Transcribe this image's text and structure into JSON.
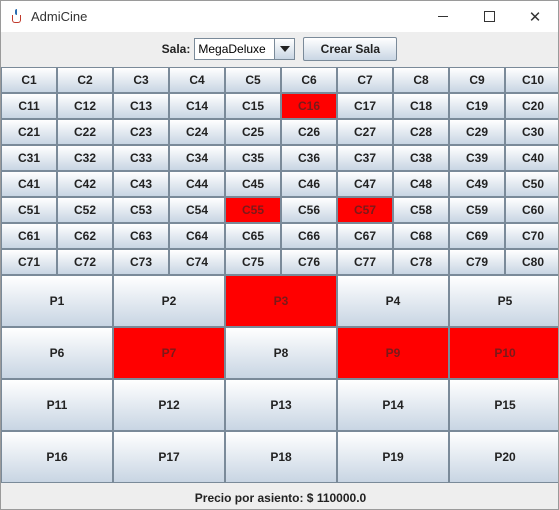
{
  "window": {
    "title": "AdmiCine"
  },
  "toolbar": {
    "sala_label": "Sala:",
    "sala_value": "MegaDeluxe",
    "crear_label": "Crear Sala"
  },
  "colors": {
    "taken": "#ff0000"
  },
  "small_seats": [
    {
      "label": "C1",
      "taken": false
    },
    {
      "label": "C2",
      "taken": false
    },
    {
      "label": "C3",
      "taken": false
    },
    {
      "label": "C4",
      "taken": false
    },
    {
      "label": "C5",
      "taken": false
    },
    {
      "label": "C6",
      "taken": false
    },
    {
      "label": "C7",
      "taken": false
    },
    {
      "label": "C8",
      "taken": false
    },
    {
      "label": "C9",
      "taken": false
    },
    {
      "label": "C10",
      "taken": false
    },
    {
      "label": "C11",
      "taken": false
    },
    {
      "label": "C12",
      "taken": false
    },
    {
      "label": "C13",
      "taken": false
    },
    {
      "label": "C14",
      "taken": false
    },
    {
      "label": "C15",
      "taken": false
    },
    {
      "label": "C16",
      "taken": true
    },
    {
      "label": "C17",
      "taken": false
    },
    {
      "label": "C18",
      "taken": false
    },
    {
      "label": "C19",
      "taken": false
    },
    {
      "label": "C20",
      "taken": false
    },
    {
      "label": "C21",
      "taken": false
    },
    {
      "label": "C22",
      "taken": false
    },
    {
      "label": "C23",
      "taken": false
    },
    {
      "label": "C24",
      "taken": false
    },
    {
      "label": "C25",
      "taken": false
    },
    {
      "label": "C26",
      "taken": false
    },
    {
      "label": "C27",
      "taken": false
    },
    {
      "label": "C28",
      "taken": false
    },
    {
      "label": "C29",
      "taken": false
    },
    {
      "label": "C30",
      "taken": false
    },
    {
      "label": "C31",
      "taken": false
    },
    {
      "label": "C32",
      "taken": false
    },
    {
      "label": "C33",
      "taken": false
    },
    {
      "label": "C34",
      "taken": false
    },
    {
      "label": "C35",
      "taken": false
    },
    {
      "label": "C36",
      "taken": false
    },
    {
      "label": "C37",
      "taken": false
    },
    {
      "label": "C38",
      "taken": false
    },
    {
      "label": "C39",
      "taken": false
    },
    {
      "label": "C40",
      "taken": false
    },
    {
      "label": "C41",
      "taken": false
    },
    {
      "label": "C42",
      "taken": false
    },
    {
      "label": "C43",
      "taken": false
    },
    {
      "label": "C44",
      "taken": false
    },
    {
      "label": "C45",
      "taken": false
    },
    {
      "label": "C46",
      "taken": false
    },
    {
      "label": "C47",
      "taken": false
    },
    {
      "label": "C48",
      "taken": false
    },
    {
      "label": "C49",
      "taken": false
    },
    {
      "label": "C50",
      "taken": false
    },
    {
      "label": "C51",
      "taken": false
    },
    {
      "label": "C52",
      "taken": false
    },
    {
      "label": "C53",
      "taken": false
    },
    {
      "label": "C54",
      "taken": false
    },
    {
      "label": "C55",
      "taken": true
    },
    {
      "label": "C56",
      "taken": false
    },
    {
      "label": "C57",
      "taken": true
    },
    {
      "label": "C58",
      "taken": false
    },
    {
      "label": "C59",
      "taken": false
    },
    {
      "label": "C60",
      "taken": false
    },
    {
      "label": "C61",
      "taken": false
    },
    {
      "label": "C62",
      "taken": false
    },
    {
      "label": "C63",
      "taken": false
    },
    {
      "label": "C64",
      "taken": false
    },
    {
      "label": "C65",
      "taken": false
    },
    {
      "label": "C66",
      "taken": false
    },
    {
      "label": "C67",
      "taken": false
    },
    {
      "label": "C68",
      "taken": false
    },
    {
      "label": "C69",
      "taken": false
    },
    {
      "label": "C70",
      "taken": false
    },
    {
      "label": "C71",
      "taken": false
    },
    {
      "label": "C72",
      "taken": false
    },
    {
      "label": "C73",
      "taken": false
    },
    {
      "label": "C74",
      "taken": false
    },
    {
      "label": "C75",
      "taken": false
    },
    {
      "label": "C76",
      "taken": false
    },
    {
      "label": "C77",
      "taken": false
    },
    {
      "label": "C78",
      "taken": false
    },
    {
      "label": "C79",
      "taken": false
    },
    {
      "label": "C80",
      "taken": false
    }
  ],
  "large_seats": [
    {
      "label": "P1",
      "taken": false
    },
    {
      "label": "P2",
      "taken": false
    },
    {
      "label": "P3",
      "taken": true
    },
    {
      "label": "P4",
      "taken": false
    },
    {
      "label": "P5",
      "taken": false
    },
    {
      "label": "P6",
      "taken": false
    },
    {
      "label": "P7",
      "taken": true
    },
    {
      "label": "P8",
      "taken": false
    },
    {
      "label": "P9",
      "taken": true
    },
    {
      "label": "P10",
      "taken": true
    },
    {
      "label": "P11",
      "taken": false
    },
    {
      "label": "P12",
      "taken": false
    },
    {
      "label": "P13",
      "taken": false
    },
    {
      "label": "P14",
      "taken": false
    },
    {
      "label": "P15",
      "taken": false
    },
    {
      "label": "P16",
      "taken": false
    },
    {
      "label": "P17",
      "taken": false
    },
    {
      "label": "P18",
      "taken": false
    },
    {
      "label": "P19",
      "taken": false
    },
    {
      "label": "P20",
      "taken": false
    }
  ],
  "footer": {
    "price_text": "Precio por asiento: $  110000.0"
  }
}
